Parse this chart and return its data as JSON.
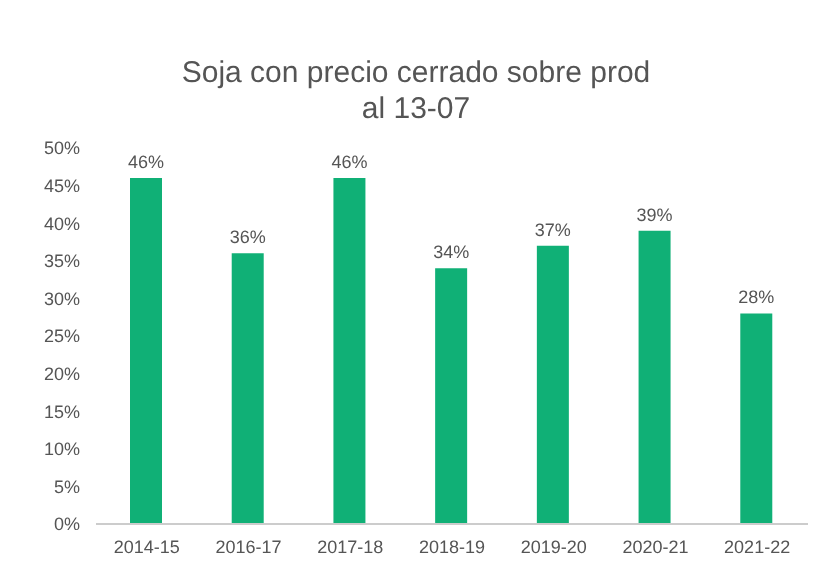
{
  "chart_data": {
    "type": "bar",
    "title": "Soja con precio cerrado sobre prod\nal 13-07",
    "categories": [
      "2014-15",
      "2016-17",
      "2017-18",
      "2018-19",
      "2019-20",
      "2020-21",
      "2021-22"
    ],
    "values": [
      46,
      36,
      46,
      34,
      37,
      39,
      28
    ],
    "value_labels": [
      "46%",
      "36%",
      "46%",
      "34%",
      "37%",
      "39%",
      "28%"
    ],
    "color": "#10b076",
    "ylim": [
      0,
      50
    ],
    "yticks": [
      {
        "value": 0,
        "label": "0%"
      },
      {
        "value": 5,
        "label": "5%"
      },
      {
        "value": 10,
        "label": "10%"
      },
      {
        "value": 15,
        "label": "15%"
      },
      {
        "value": 20,
        "label": "20%"
      },
      {
        "value": 25,
        "label": "25%"
      },
      {
        "value": 30,
        "label": "30%"
      },
      {
        "value": 35,
        "label": "35%"
      },
      {
        "value": 40,
        "label": "40%"
      },
      {
        "value": 45,
        "label": "45%"
      },
      {
        "value": 50,
        "label": "50%"
      }
    ],
    "grid": false
  }
}
